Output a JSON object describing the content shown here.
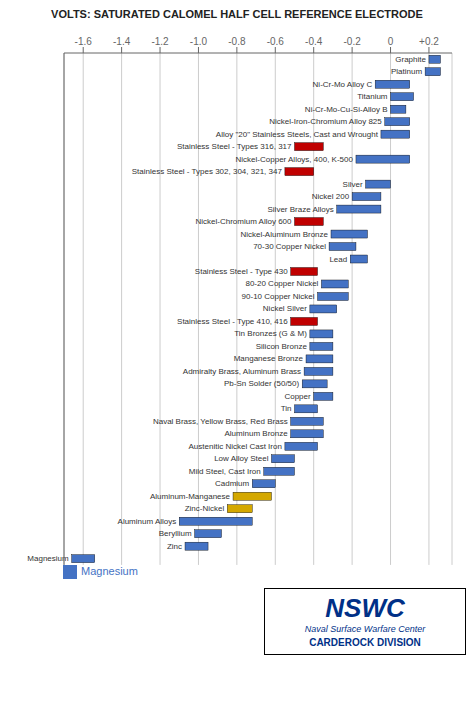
{
  "chart_data": {
    "type": "bar",
    "orientation": "horizontal",
    "title": "VOLTS: SATURATED CALOMEL HALF CELL REFERENCE ELECTRODE",
    "categories": [
      "Graphite",
      "Platinum",
      "Ni-Cr-Mo Alloy C",
      "Titanium",
      "Ni-Cr-Mo-Cu-Si-Alloy B",
      "Nickel-Iron-Chromium Alloy 825",
      "Alloy \"20\" Stainless Steels, Cast and Wrought",
      "Stainless Steel - Types 316, 317",
      "Nickel-Copper Alloys, 400, K-500",
      "Stainless Steel - Types 302, 304, 321, 347",
      "Silver",
      "Nickel 200",
      "Silver Braze Alloys",
      "Nickel-Chromium Alloy 600",
      "Nickel-Aluminum Bronze",
      "70-30 Copper Nickel",
      "Lead",
      "Stainless Steel - Type 430",
      "80-20 Copper Nickel",
      "90-10 Copper Nickel",
      "Nickel Silver",
      "Stainless Steel - Type 410, 416",
      "Tin Bronzes (G & M)",
      "Silicon Bronze",
      "Manganese Bronze",
      "Admiralty Brass, Aluminum Brass",
      "Pb-Sn Solder (50/50)",
      "Copper",
      "Tin",
      "Naval Brass, Yellow Brass, Red Brass",
      "Aluminum Bronze",
      "Austenitic Nickel Cast Iron",
      "Low Alloy Steel",
      "Mild Steel, Cast Iron",
      "Cadmium",
      "Aluminum-Manganese",
      "Zinc-Nickel",
      "Aluminum Alloys",
      "Beryllium",
      "Zinc",
      "Magnesium"
    ],
    "series": [
      {
        "name": "Magnesium",
        "color": "#4472c4",
        "colors": [
          "#4472c4",
          "#4472c4",
          "#4472c4",
          "#4472c4",
          "#4472c4",
          "#4472c4",
          "#4472c4",
          "#c00000",
          "#4472c4",
          "#c00000",
          "#4472c4",
          "#4472c4",
          "#4472c4",
          "#c00000",
          "#4472c4",
          "#4472c4",
          "#4472c4",
          "#c00000",
          "#4472c4",
          "#4472c4",
          "#4472c4",
          "#c00000",
          "#4472c4",
          "#4472c4",
          "#4472c4",
          "#4472c4",
          "#4472c4",
          "#4472c4",
          "#4472c4",
          "#4472c4",
          "#4472c4",
          "#4472c4",
          "#4472c4",
          "#4472c4",
          "#4472c4",
          "#d4a800",
          "#d4a800",
          "#4472c4",
          "#4472c4",
          "#4472c4",
          "#4472c4"
        ],
        "values": [
          [
            0.2,
            0.26
          ],
          [
            0.18,
            0.26
          ],
          [
            -0.08,
            0.1
          ],
          [
            0.0,
            0.12
          ],
          [
            0.0,
            0.08
          ],
          [
            -0.03,
            0.1
          ],
          [
            -0.05,
            0.1
          ],
          [
            -0.5,
            -0.35
          ],
          [
            -0.18,
            0.1
          ],
          [
            -0.55,
            -0.4
          ],
          [
            -0.13,
            0.0
          ],
          [
            -0.2,
            -0.05
          ],
          [
            -0.28,
            -0.05
          ],
          [
            -0.5,
            -0.35
          ],
          [
            -0.31,
            -0.12
          ],
          [
            -0.32,
            -0.18
          ],
          [
            -0.21,
            -0.12
          ],
          [
            -0.52,
            -0.38
          ],
          [
            -0.36,
            -0.22
          ],
          [
            -0.38,
            -0.22
          ],
          [
            -0.42,
            -0.28
          ],
          [
            -0.52,
            -0.38
          ],
          [
            -0.42,
            -0.3
          ],
          [
            -0.42,
            -0.3
          ],
          [
            -0.44,
            -0.3
          ],
          [
            -0.45,
            -0.3
          ],
          [
            -0.46,
            -0.33
          ],
          [
            -0.4,
            -0.3
          ],
          [
            -0.5,
            -0.38
          ],
          [
            -0.52,
            -0.35
          ],
          [
            -0.52,
            -0.35
          ],
          [
            -0.55,
            -0.38
          ],
          [
            -0.62,
            -0.5
          ],
          [
            -0.66,
            -0.5
          ],
          [
            -0.72,
            -0.6
          ],
          [
            -0.82,
            -0.62
          ],
          [
            -0.85,
            -0.72
          ],
          [
            -1.1,
            -0.72
          ],
          [
            -1.02,
            -0.88
          ],
          [
            -1.07,
            -0.95
          ],
          [
            -1.66,
            -1.54
          ]
        ]
      }
    ],
    "xlim": [
      -1.7,
      0.32
    ],
    "xticks": [
      -1.6,
      -1.4,
      -1.2,
      {
        "value": -1.0,
        "label": "-1.0"
      },
      -0.8,
      -0.6,
      -0.4,
      -0.2,
      0,
      {
        "value": 0.2,
        "label": "+0.2"
      }
    ],
    "grid": true,
    "legend": "lower left",
    "tick_labels": "x",
    "annotations": [
      {
        "text": "NSWC",
        "color": "#003087"
      },
      {
        "text": "Naval Surface Warfare Center",
        "color": "#003087"
      },
      {
        "text": "CARDEROCK DIVISION",
        "color": "#003087"
      }
    ]
  }
}
